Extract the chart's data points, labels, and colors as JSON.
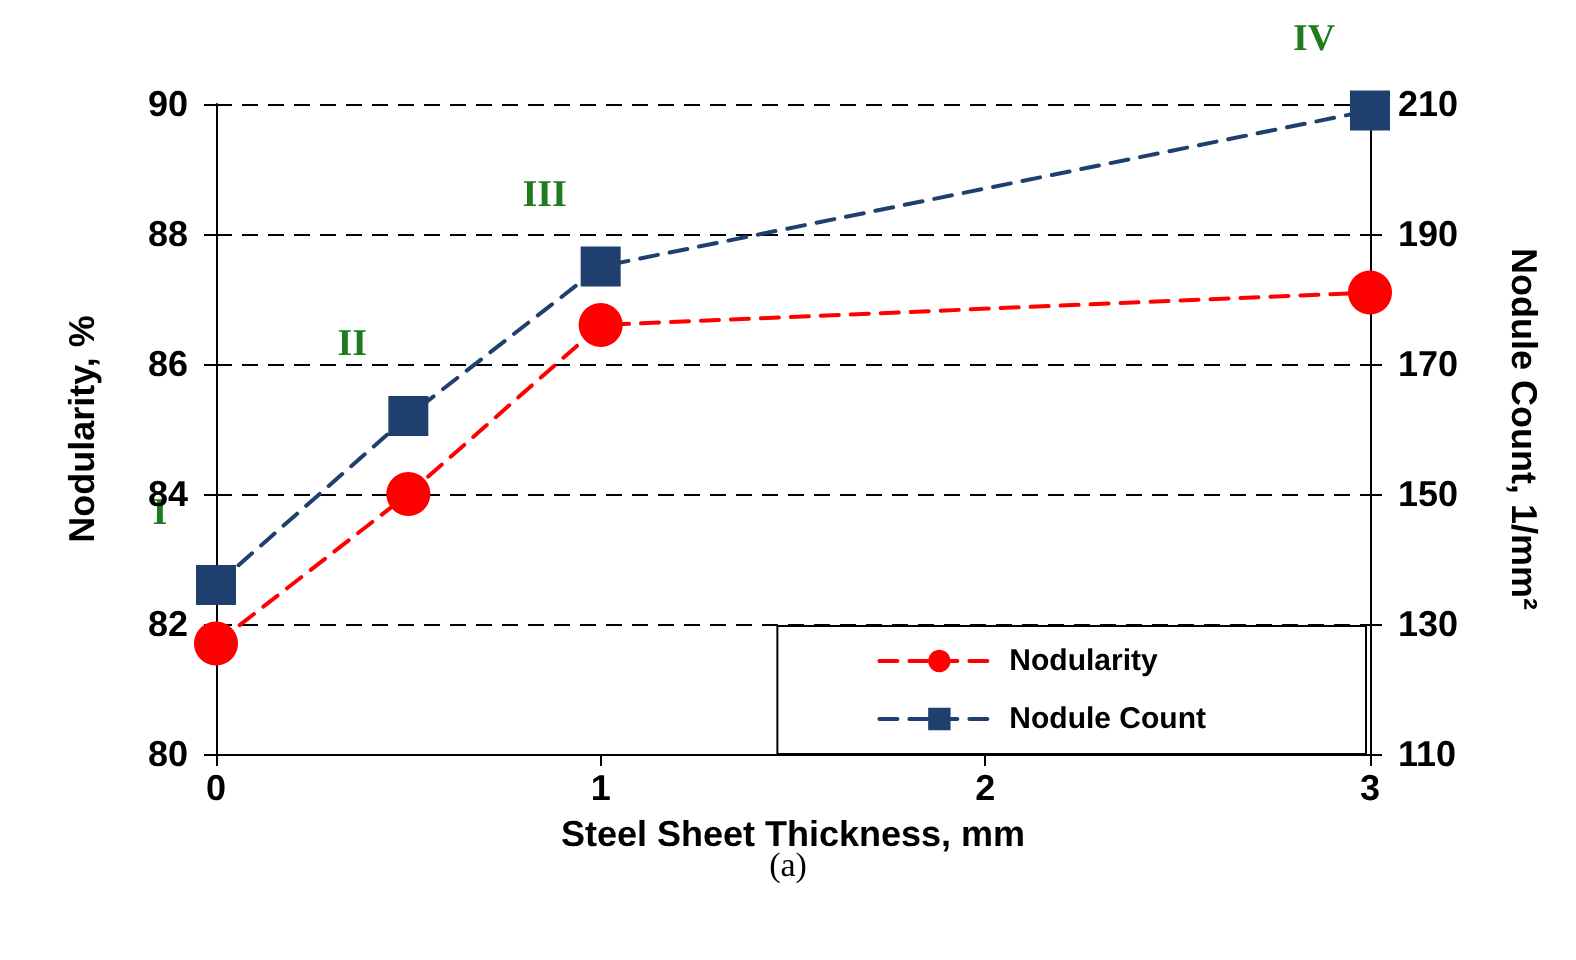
{
  "chart_data": {
    "type": "line",
    "x": [
      0,
      0.5,
      1,
      3
    ],
    "xlabel": "Steel Sheet Thickness, mm",
    "ylabel": "Nodularity, %",
    "y2label": "Nodule Count, 1/mm²",
    "series": [
      {
        "name": "Nodularity",
        "color": "#ff0000",
        "values": [
          81.7,
          84.0,
          86.6,
          87.1
        ],
        "marker": "circle"
      },
      {
        "name": "Nodule Count",
        "color": "#1f3f6e",
        "values": [
          136,
          162,
          185,
          209
        ],
        "marker": "square",
        "axis": "y2"
      }
    ],
    "line_style": "dashed",
    "xlim": [
      0,
      3
    ],
    "xticks": [
      0,
      1,
      2,
      3
    ],
    "ylim": [
      80,
      90
    ],
    "yticks": [
      80,
      82,
      84,
      86,
      88,
      90
    ],
    "y2lim": [
      110,
      210
    ],
    "y2ticks": [
      110,
      130,
      150,
      170,
      190,
      210
    ],
    "grid": "y",
    "legend": "bottom right",
    "annotations": [
      {
        "text": "I",
        "x": 0,
        "y": 82.6
      },
      {
        "text": "II",
        "x": 0.5,
        "y": 85.2
      },
      {
        "text": "III",
        "x": 1,
        "y": 87.5
      },
      {
        "text": "IV",
        "x": 3,
        "y": 89.9
      },
      "(a)"
    ]
  }
}
